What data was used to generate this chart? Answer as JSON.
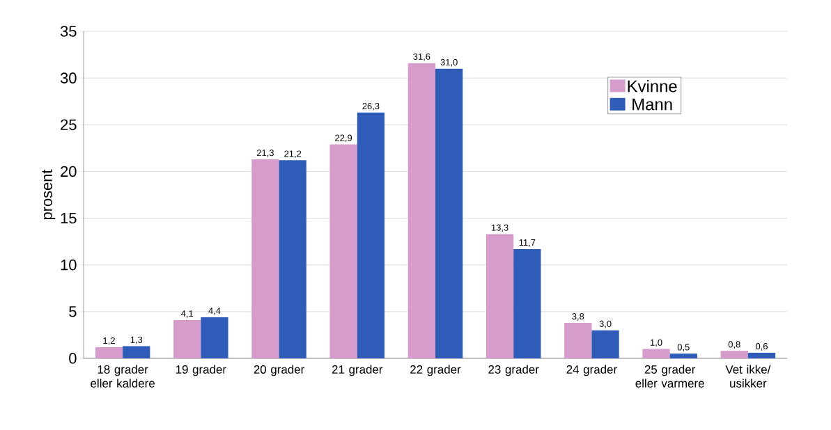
{
  "chart_data": {
    "type": "bar",
    "ylabel": "prosent",
    "categories": [
      "18 grader eller kaldere",
      "19 grader",
      "20 grader",
      "21 grader",
      "22 grader",
      "23 grader",
      "24 grader",
      "25 grader eller varmere",
      "Vet ikke/ usikker"
    ],
    "series": [
      {
        "name": "Kvinne",
        "color": "#d69ccc",
        "values": [
          1.2,
          4.1,
          21.3,
          22.9,
          31.6,
          13.3,
          3.8,
          1.0,
          0.8
        ],
        "value_labels": [
          "1,2",
          "4,1",
          "21,3",
          "22,9",
          "31,6",
          "13,3",
          "3,8",
          "1,0",
          "0,8"
        ]
      },
      {
        "name": "Mann",
        "color": "#2e5cb8",
        "values": [
          1.3,
          4.4,
          21.2,
          26.3,
          31.0,
          11.7,
          3.0,
          0.5,
          0.6
        ],
        "value_labels": [
          "1,3",
          "4,4",
          "21,2",
          "26,3",
          "31,0",
          "11,7",
          "3,0",
          "0,5",
          "0,6"
        ]
      }
    ],
    "ylim": [
      0,
      35
    ],
    "yticks": [
      0,
      5,
      10,
      15,
      20,
      25,
      30,
      35
    ],
    "grid": "y",
    "legend": "top right"
  }
}
